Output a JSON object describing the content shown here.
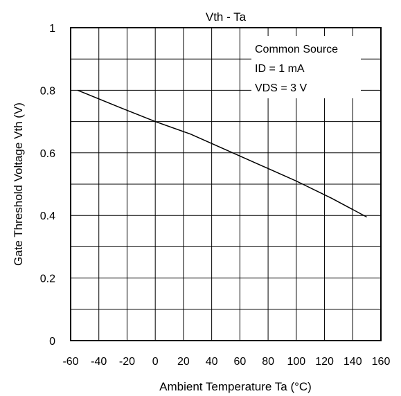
{
  "chart_data": {
    "type": "line",
    "title": "Vth - Ta",
    "xlabel": "Ambient Temperature Ta (°C)",
    "ylabel": "Gate Threshold Voltage Vth (V)",
    "xlim": [
      -60,
      160
    ],
    "ylim": [
      0,
      1
    ],
    "x_ticks": [
      -60,
      -40,
      -20,
      0,
      20,
      40,
      60,
      80,
      100,
      120,
      140,
      160
    ],
    "x_tick_labels": [
      "-60",
      "-40",
      "-20",
      "0",
      "20",
      "40",
      "60",
      "80",
      "100",
      "120",
      "140",
      "160"
    ],
    "y_ticks": [
      0,
      0.2,
      0.4,
      0.6,
      0.8,
      1
    ],
    "y_tick_labels": [
      "0",
      "0.2",
      "0.4",
      "0.6",
      "0.8",
      "1"
    ],
    "x_grid_step": 20,
    "y_grid_step": 0.1,
    "grid": true,
    "legend": "none",
    "annotation": {
      "position": "top-right",
      "lines": [
        "Common Source",
        "ID = 1 mA",
        "VDS = 3 V"
      ]
    },
    "series": [
      {
        "x": [
          -55,
          -25,
          0,
          25,
          50,
          75,
          100,
          125,
          150
        ],
        "y": [
          0.8,
          0.745,
          0.7,
          0.66,
          0.61,
          0.56,
          0.51,
          0.455,
          0.395
        ]
      }
    ],
    "colors": {
      "line": "#000000",
      "grid": "#000000",
      "background": "#ffffff"
    }
  }
}
